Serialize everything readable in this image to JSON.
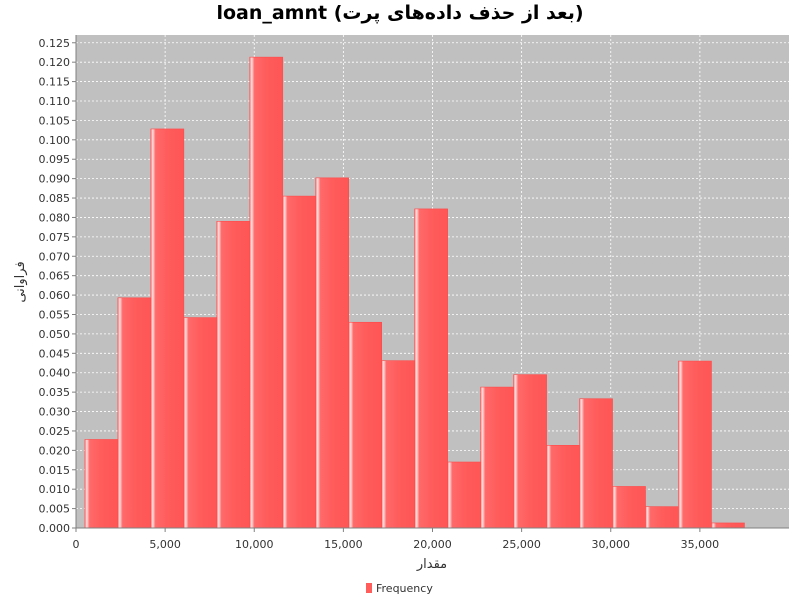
{
  "chart_data": {
    "type": "bar",
    "title": "loan_amnt (بعد از حذف داده‌های پرت)",
    "xlabel": "مقدار",
    "ylabel": "فراوانی",
    "xlim": [
      0,
      40000
    ],
    "ylim": [
      0,
      0.127
    ],
    "grid": true,
    "legend": {
      "label": "Frequency",
      "position": "bottom-center"
    },
    "x_ticks": [
      0,
      5000,
      10000,
      15000,
      20000,
      25000,
      30000,
      35000
    ],
    "x_tick_labels": [
      "0",
      "5,000",
      "10,000",
      "15,000",
      "20,000",
      "25,000",
      "30,000",
      "35,000"
    ],
    "y_ticks": [
      0.0,
      0.005,
      0.01,
      0.015,
      0.02,
      0.025,
      0.03,
      0.035,
      0.04,
      0.045,
      0.05,
      0.055,
      0.06,
      0.065,
      0.07,
      0.075,
      0.08,
      0.085,
      0.09,
      0.095,
      0.1,
      0.105,
      0.11,
      0.115,
      0.12,
      0.125
    ],
    "y_tick_labels": [
      "0.000",
      "0.005",
      "0.010",
      "0.015",
      "0.020",
      "0.025",
      "0.030",
      "0.035",
      "0.040",
      "0.045",
      "0.050",
      "0.055",
      "0.060",
      "0.065",
      "0.070",
      "0.075",
      "0.080",
      "0.085",
      "0.090",
      "0.095",
      "0.100",
      "0.105",
      "0.110",
      "0.115",
      "0.120",
      "0.125"
    ],
    "bins": [
      {
        "start": 500,
        "end": 2350,
        "value": 0.0228
      },
      {
        "start": 2350,
        "end": 4200,
        "value": 0.0593
      },
      {
        "start": 4200,
        "end": 6050,
        "value": 0.1028
      },
      {
        "start": 6050,
        "end": 7900,
        "value": 0.0542
      },
      {
        "start": 7900,
        "end": 9750,
        "value": 0.079
      },
      {
        "start": 9750,
        "end": 11600,
        "value": 0.1213
      },
      {
        "start": 11600,
        "end": 13450,
        "value": 0.0855
      },
      {
        "start": 13450,
        "end": 15300,
        "value": 0.0902
      },
      {
        "start": 15300,
        "end": 17150,
        "value": 0.053
      },
      {
        "start": 17150,
        "end": 19000,
        "value": 0.0431
      },
      {
        "start": 19000,
        "end": 20850,
        "value": 0.0822
      },
      {
        "start": 20850,
        "end": 22700,
        "value": 0.017
      },
      {
        "start": 22700,
        "end": 24550,
        "value": 0.0363
      },
      {
        "start": 24550,
        "end": 26400,
        "value": 0.0395
      },
      {
        "start": 26400,
        "end": 28250,
        "value": 0.0213
      },
      {
        "start": 28250,
        "end": 30100,
        "value": 0.0333
      },
      {
        "start": 30100,
        "end": 31950,
        "value": 0.0107
      },
      {
        "start": 31950,
        "end": 33800,
        "value": 0.0055
      },
      {
        "start": 33800,
        "end": 35650,
        "value": 0.043
      },
      {
        "start": 35650,
        "end": 37500,
        "value": 0.0013
      }
    ],
    "colors": {
      "bar": "#ff5c5c",
      "bar_highlight": "#ffd6d6",
      "plot_background": "#c0c0c0",
      "grid": "#ffffff",
      "legend_swatch": "#ff5c5c"
    }
  }
}
